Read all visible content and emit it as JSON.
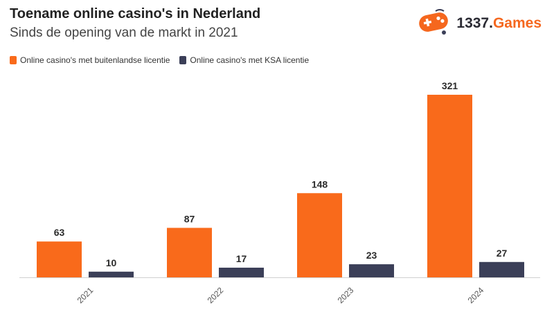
{
  "title": "Toename online casino's in Nederland",
  "subtitle": "Sinds de opening van de markt in 2021",
  "logo": {
    "name_main": "1337.",
    "name_accent": "Games",
    "icon": "gamepad-icon"
  },
  "colors": {
    "foreign": "#f96a1b",
    "ksa": "#3b3f58",
    "logo_accent": "#f5671e"
  },
  "chart_data": {
    "type": "bar",
    "title": "Toename online casino's in Nederland",
    "subtitle": "Sinds de opening van de markt in 2021",
    "categories": [
      "2021",
      "2022",
      "2023",
      "2024"
    ],
    "series": [
      {
        "name": "Online casino's met buitenlandse licentie",
        "values": [
          63,
          87,
          148,
          321
        ],
        "color": "#f96a1b"
      },
      {
        "name": "Online casino's met KSA licentie",
        "values": [
          10,
          17,
          23,
          27
        ],
        "color": "#3b3f58"
      }
    ],
    "ylim": [
      0,
      321
    ],
    "grid": false,
    "legend_position": "top-left",
    "data_labels": true
  }
}
